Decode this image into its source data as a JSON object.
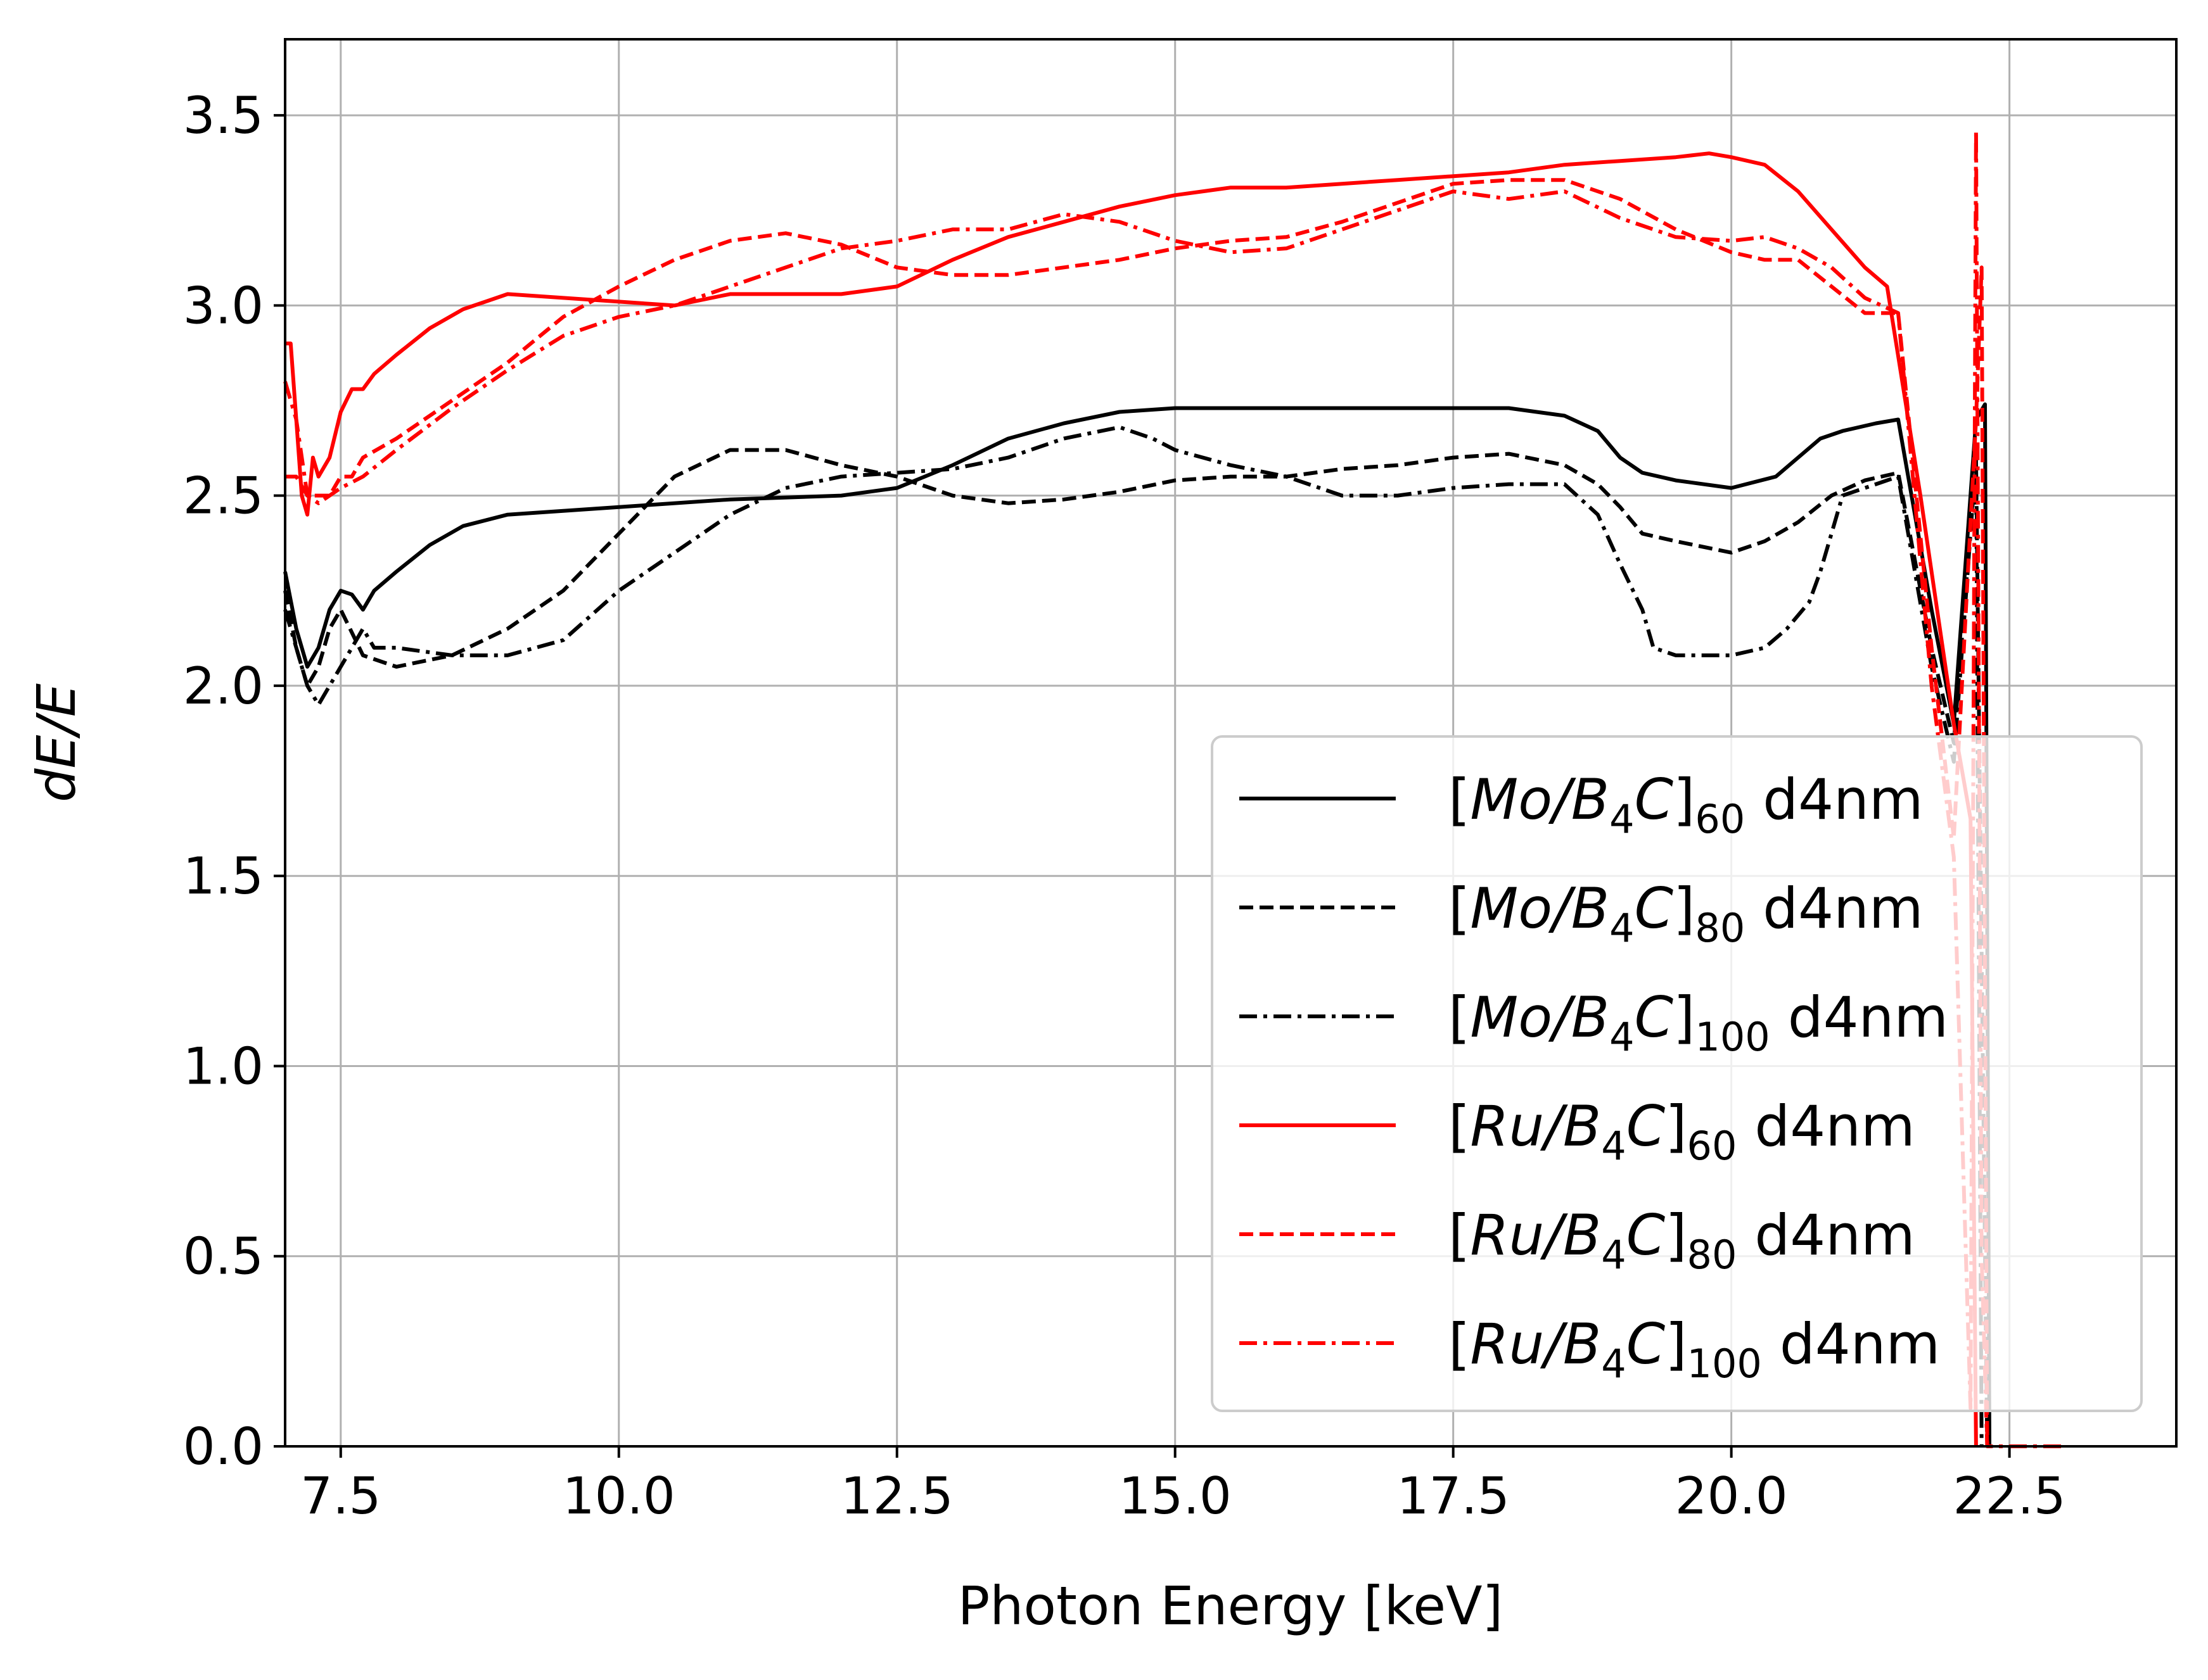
{
  "chart_data": {
    "type": "line",
    "xlabel": "Photon Energy [keV]",
    "ylabel": "dE/E",
    "xlim": [
      7.0,
      24.0
    ],
    "ylim": [
      0.0,
      3.7
    ],
    "xticks": [
      "7.5",
      "10.0",
      "12.5",
      "15.0",
      "17.5",
      "20.0",
      "22.5"
    ],
    "yticks": [
      "0.0",
      "0.5",
      "1.0",
      "1.5",
      "2.0",
      "2.5",
      "3.0",
      "3.5"
    ],
    "grid": true,
    "legend_position": "lower right",
    "series": [
      {
        "name": "[Mo/B4C]60 d4nm",
        "legend": {
          "pre": "[",
          "math": "Mo/B",
          "msub": "4",
          "math2": "C",
          "post": "]",
          "sub": "60",
          "suffix": " d4nm"
        },
        "color": "#000000",
        "dash": "solid",
        "x": [
          7.0,
          7.1,
          7.2,
          7.3,
          7.4,
          7.5,
          7.6,
          7.7,
          7.8,
          8.0,
          8.3,
          8.6,
          9.0,
          9.5,
          10.0,
          11.0,
          12.0,
          12.5,
          13.0,
          13.5,
          14.0,
          14.5,
          15.0,
          15.5,
          16.0,
          17.0,
          18.0,
          18.5,
          18.8,
          19.0,
          19.2,
          19.5,
          20.0,
          20.4,
          20.6,
          20.8,
          21.0,
          21.3,
          21.5,
          21.8,
          22.0,
          22.2,
          22.28,
          22.32,
          22.35
        ],
        "y": [
          2.3,
          2.15,
          2.05,
          2.1,
          2.2,
          2.25,
          2.24,
          2.2,
          2.25,
          2.3,
          2.37,
          2.42,
          2.45,
          2.46,
          2.47,
          2.49,
          2.5,
          2.52,
          2.58,
          2.65,
          2.69,
          2.72,
          2.73,
          2.73,
          2.73,
          2.73,
          2.73,
          2.71,
          2.67,
          2.6,
          2.56,
          2.54,
          2.52,
          2.55,
          2.6,
          2.65,
          2.67,
          2.69,
          2.7,
          2.2,
          1.9,
          2.7,
          2.74,
          0.0,
          0.0
        ]
      },
      {
        "name": "[Mo/B4C]80 d4nm",
        "legend": {
          "pre": "[",
          "math": "Mo/B",
          "msub": "4",
          "math2": "C",
          "post": "]",
          "sub": "80",
          "suffix": " d4nm"
        },
        "color": "#000000",
        "dash": "dashed",
        "x": [
          7.0,
          7.1,
          7.2,
          7.3,
          7.4,
          7.5,
          7.7,
          8.0,
          8.5,
          9.0,
          9.5,
          10.0,
          10.5,
          11.0,
          11.5,
          12.0,
          12.5,
          13.0,
          13.5,
          14.0,
          14.5,
          15.0,
          15.5,
          16.0,
          16.5,
          17.0,
          17.5,
          18.0,
          18.5,
          18.8,
          19.0,
          19.2,
          19.5,
          20.0,
          20.3,
          20.6,
          20.9,
          21.2,
          21.5,
          21.8,
          22.0,
          22.2,
          22.3
        ],
        "y": [
          2.25,
          2.1,
          2.0,
          2.05,
          2.15,
          2.2,
          2.08,
          2.05,
          2.08,
          2.15,
          2.25,
          2.4,
          2.55,
          2.62,
          2.62,
          2.58,
          2.55,
          2.5,
          2.48,
          2.49,
          2.51,
          2.54,
          2.55,
          2.55,
          2.57,
          2.58,
          2.6,
          2.61,
          2.58,
          2.53,
          2.47,
          2.4,
          2.38,
          2.35,
          2.38,
          2.43,
          2.5,
          2.54,
          2.56,
          2.1,
          1.85,
          2.6,
          0.0
        ]
      },
      {
        "name": "[Mo/B4C]100 d4nm",
        "legend": {
          "pre": "[",
          "math": "Mo/B",
          "msub": "4",
          "math2": "C",
          "post": "]",
          "sub": "100",
          "suffix": " d4nm"
        },
        "color": "#000000",
        "dash": "dashdot",
        "x": [
          7.0,
          7.1,
          7.2,
          7.3,
          7.4,
          7.5,
          7.6,
          7.7,
          7.8,
          8.0,
          8.5,
          9.0,
          9.5,
          10.0,
          10.5,
          11.0,
          11.5,
          12.0,
          12.5,
          13.0,
          13.5,
          14.0,
          14.5,
          14.8,
          15.0,
          15.5,
          16.0,
          16.5,
          17.0,
          17.5,
          18.0,
          18.5,
          18.8,
          19.0,
          19.2,
          19.3,
          19.5,
          20.0,
          20.3,
          20.5,
          20.7,
          20.8,
          20.9,
          21.0,
          21.2,
          21.5,
          21.8,
          22.0,
          22.2,
          22.25
        ],
        "y": [
          2.2,
          2.1,
          2.0,
          1.95,
          2.0,
          2.05,
          2.1,
          2.15,
          2.1,
          2.1,
          2.08,
          2.08,
          2.12,
          2.25,
          2.35,
          2.45,
          2.52,
          2.55,
          2.56,
          2.57,
          2.6,
          2.65,
          2.68,
          2.65,
          2.62,
          2.58,
          2.55,
          2.5,
          2.5,
          2.52,
          2.53,
          2.53,
          2.45,
          2.32,
          2.2,
          2.1,
          2.08,
          2.08,
          2.1,
          2.15,
          2.22,
          2.3,
          2.4,
          2.5,
          2.52,
          2.55,
          2.05,
          1.8,
          2.6,
          0.0
        ]
      },
      {
        "name": "[Ru/B4C]60 d4nm",
        "legend": {
          "pre": "[",
          "math": "Ru/B",
          "msub": "4",
          "math2": "C",
          "post": "]",
          "sub": "60",
          "suffix": " d4nm"
        },
        "color": "#ff0000",
        "dash": "solid",
        "x": [
          7.0,
          7.05,
          7.1,
          7.15,
          7.2,
          7.25,
          7.3,
          7.4,
          7.5,
          7.6,
          7.7,
          7.8,
          8.0,
          8.3,
          8.6,
          9.0,
          9.5,
          10.0,
          10.5,
          11.0,
          11.5,
          12.0,
          12.5,
          13.0,
          13.5,
          14.0,
          14.5,
          15.0,
          15.5,
          16.0,
          16.5,
          17.0,
          17.5,
          18.0,
          18.5,
          19.0,
          19.5,
          19.8,
          20.0,
          20.3,
          20.6,
          20.9,
          21.2,
          21.4,
          21.7,
          22.0,
          22.15,
          22.2
        ],
        "y": [
          2.9,
          2.9,
          2.7,
          2.5,
          2.45,
          2.6,
          2.55,
          2.6,
          2.72,
          2.78,
          2.78,
          2.82,
          2.87,
          2.94,
          2.99,
          3.03,
          3.02,
          3.01,
          3.0,
          3.03,
          3.03,
          3.03,
          3.05,
          3.12,
          3.18,
          3.22,
          3.26,
          3.29,
          3.31,
          3.31,
          3.32,
          3.33,
          3.34,
          3.35,
          3.37,
          3.38,
          3.39,
          3.4,
          3.39,
          3.37,
          3.3,
          3.2,
          3.1,
          3.05,
          2.5,
          1.9,
          1.65,
          0.0
        ]
      },
      {
        "name": "[Ru/B4C]80 d4nm",
        "legend": {
          "pre": "[",
          "math": "Ru/B",
          "msub": "4",
          "math2": "C",
          "post": "]",
          "sub": "80",
          "suffix": " d4nm"
        },
        "color": "#ff0000",
        "dash": "dashed",
        "x": [
          7.0,
          7.1,
          7.2,
          7.3,
          7.4,
          7.5,
          7.6,
          7.7,
          8.0,
          8.5,
          9.0,
          9.5,
          10.0,
          10.5,
          11.0,
          11.5,
          12.0,
          12.5,
          13.0,
          13.5,
          14.0,
          14.5,
          15.0,
          15.5,
          16.0,
          16.5,
          17.0,
          17.5,
          18.0,
          18.5,
          19.0,
          19.5,
          20.0,
          20.3,
          20.6,
          20.9,
          21.2,
          21.5,
          21.8,
          22.0,
          22.2,
          22.25,
          22.3
        ],
        "y": [
          2.55,
          2.55,
          2.5,
          2.5,
          2.5,
          2.55,
          2.55,
          2.6,
          2.65,
          2.75,
          2.85,
          2.97,
          3.05,
          3.12,
          3.17,
          3.19,
          3.16,
          3.1,
          3.08,
          3.08,
          3.1,
          3.12,
          3.15,
          3.17,
          3.18,
          3.22,
          3.27,
          3.32,
          3.33,
          3.33,
          3.28,
          3.2,
          3.14,
          3.12,
          3.12,
          3.05,
          2.98,
          2.98,
          2.1,
          1.6,
          2.7,
          3.1,
          0.0
        ]
      },
      {
        "name": "[Ru/B4C]100 d4nm",
        "legend": {
          "pre": "[",
          "math": "Ru/B",
          "msub": "4",
          "math2": "C",
          "post": "]",
          "sub": "100",
          "suffix": " d4nm"
        },
        "color": "#ff0000",
        "dash": "dashdot",
        "x": [
          7.0,
          7.1,
          7.2,
          7.3,
          7.4,
          7.5,
          7.7,
          8.0,
          8.5,
          9.0,
          9.5,
          10.0,
          10.5,
          11.0,
          11.5,
          12.0,
          12.5,
          13.0,
          13.5,
          14.0,
          14.5,
          15.0,
          15.5,
          16.0,
          16.5,
          17.0,
          17.5,
          18.0,
          18.5,
          19.0,
          19.5,
          20.0,
          20.3,
          20.6,
          20.9,
          21.2,
          21.5,
          21.8,
          22.0,
          22.15,
          22.2,
          22.25,
          22.3,
          22.35,
          22.5,
          23.0
        ],
        "y": [
          2.8,
          2.7,
          2.5,
          2.48,
          2.5,
          2.52,
          2.55,
          2.62,
          2.73,
          2.83,
          2.92,
          2.97,
          3.0,
          3.05,
          3.1,
          3.15,
          3.17,
          3.2,
          3.2,
          3.24,
          3.22,
          3.17,
          3.14,
          3.15,
          3.2,
          3.25,
          3.3,
          3.28,
          3.3,
          3.23,
          3.18,
          3.17,
          3.18,
          3.15,
          3.1,
          3.02,
          2.98,
          2.0,
          1.55,
          0.1,
          3.46,
          0.5,
          0.0,
          0.0,
          0.0,
          0.0
        ]
      }
    ]
  }
}
